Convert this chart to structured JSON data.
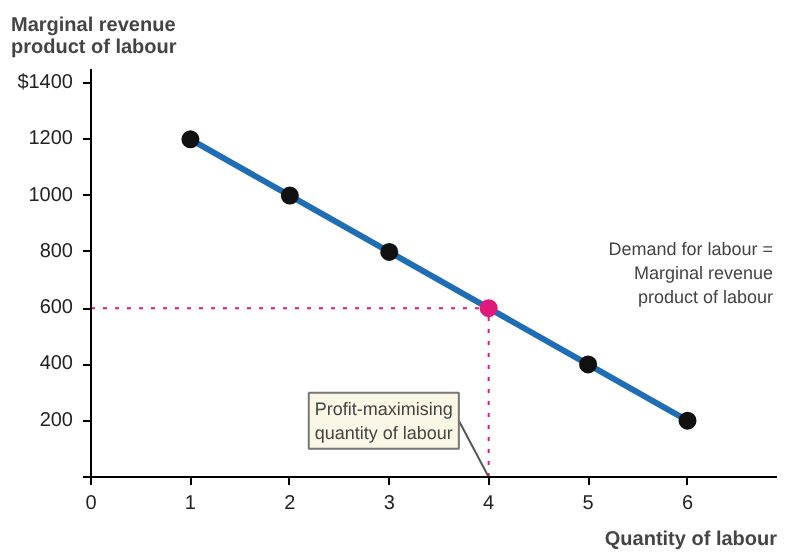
{
  "chart_data": {
    "type": "line",
    "title": "Marginal revenue\nproduct of labour",
    "xlabel": "Quantity of labour",
    "x": [
      1,
      2,
      3,
      4,
      5,
      6
    ],
    "series": [
      {
        "color": "#1f6db5",
        "values": [
          1200,
          1000,
          800,
          600,
          400,
          200
        ],
        "colors": [
          "#111111",
          "#111111",
          "#111111",
          "#e0197d",
          "#111111",
          "#111111"
        ]
      }
    ],
    "marker": "circle",
    "line_style": "solid",
    "grid": false,
    "xlim": [
      0,
      6.9
    ],
    "xticks": [
      0,
      1,
      2,
      3,
      4,
      5,
      6
    ],
    "ylim": [
      0,
      1450
    ],
    "yticks": [
      {
        "value": 0,
        "label": null
      },
      200,
      400,
      600,
      800,
      1000,
      1200,
      {
        "value": 1400,
        "label": "$1400"
      }
    ],
    "ref_lines": [
      {
        "axis": "x",
        "value": 4,
        "color": "#e0197d",
        "line_style": "dotted"
      },
      {
        "axis": "y",
        "value": 600,
        "color": "#e0197d",
        "line_style": "dotted"
      }
    ],
    "annotations": [
      "Demand for labour =\nMarginal revenue\nproduct of labour",
      {
        "text": "Profit-maximising\nquantity of labour",
        "x": 4,
        "y": 0
      }
    ]
  }
}
